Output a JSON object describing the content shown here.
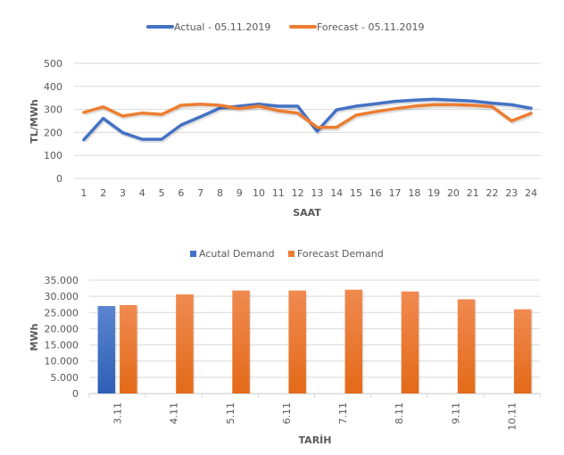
{
  "chart_data": [
    {
      "type": "line",
      "title": "",
      "xlabel": "SAAT",
      "ylabel": "TL/MWh",
      "ylim": [
        0,
        500
      ],
      "yticks": [
        "0",
        "100",
        "200",
        "300",
        "400",
        "500"
      ],
      "ytick_values": [
        0,
        100,
        200,
        300,
        400,
        500
      ],
      "grid": true,
      "legend_position": "top",
      "categories": [
        "1",
        "2",
        "3",
        "4",
        "5",
        "6",
        "7",
        "8",
        "9",
        "10",
        "11",
        "12",
        "13",
        "14",
        "15",
        "16",
        "17",
        "18",
        "19",
        "20",
        "21",
        "22",
        "23",
        "24"
      ],
      "series": [
        {
          "name": "Actual - 05.11.2019",
          "color": "#4472C4",
          "values": [
            168,
            261,
            199,
            170,
            170,
            232,
            268,
            306,
            314,
            323,
            314,
            314,
            205,
            298,
            314,
            324,
            335,
            340,
            344,
            340,
            336,
            327,
            320,
            305
          ]
        },
        {
          "name": "Forecast - 05.11.2019",
          "color": "#ED7D31",
          "values": [
            287,
            311,
            271,
            284,
            278,
            318,
            323,
            318,
            303,
            314,
            294,
            284,
            222,
            222,
            275,
            290,
            303,
            314,
            320,
            320,
            318,
            312,
            250,
            283
          ]
        }
      ]
    },
    {
      "type": "bar",
      "title": "",
      "xlabel": "TARİH",
      "ylabel": "MWh",
      "ylim": [
        0,
        35000
      ],
      "yticks": [
        "0",
        "5.000",
        "10.000",
        "15.000",
        "20.000",
        "25.000",
        "30.000",
        "35.000"
      ],
      "ytick_values": [
        0,
        5000,
        10000,
        15000,
        20000,
        25000,
        30000,
        35000
      ],
      "grid": true,
      "legend_position": "top",
      "categories": [
        "3.11",
        "4.11",
        "5.11",
        "6.11",
        "7.11",
        "8.11",
        "9.11",
        "10.11"
      ],
      "series": [
        {
          "name": "Acutal Demand",
          "color": "#4472C4",
          "values": [
            27000,
            null,
            null,
            null,
            null,
            null,
            null,
            null
          ]
        },
        {
          "name": "Forecast Demand",
          "color": "#ED7D31",
          "values": [
            27300,
            30600,
            31800,
            31800,
            32050,
            31500,
            29100,
            26000
          ]
        }
      ]
    }
  ]
}
